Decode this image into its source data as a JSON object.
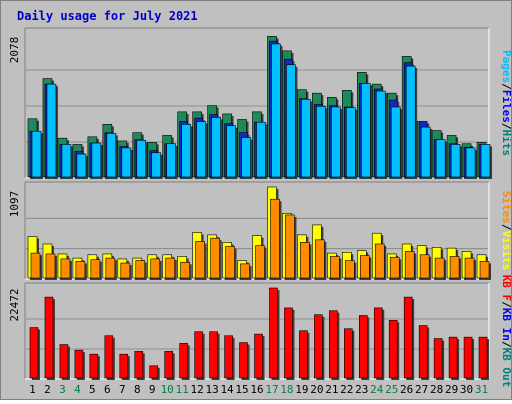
{
  "chart_data": {
    "type": "bar",
    "title": "Daily usage for July 2021",
    "categories": [
      "1",
      "2",
      "3",
      "4",
      "5",
      "6",
      "7",
      "8",
      "9",
      "10",
      "11",
      "12",
      "13",
      "14",
      "15",
      "16",
      "17",
      "18",
      "19",
      "20",
      "21",
      "22",
      "23",
      "24",
      "25",
      "26",
      "27",
      "28",
      "29",
      "30",
      "31"
    ],
    "weekend_categories": [
      "3",
      "4",
      "10",
      "11",
      "17",
      "18",
      "24",
      "25",
      "31"
    ],
    "panels": [
      {
        "id": "top",
        "ymax_label": "2078",
        "ymax": 2078,
        "legend": [
          {
            "text": "Pages",
            "color": "#00c0ff"
          },
          {
            "text": "/",
            "color": "#000000"
          },
          {
            "text": "Files",
            "color": "#0000ff"
          },
          {
            "text": "/",
            "color": "#000000"
          },
          {
            "text": "Hits",
            "color": "#008080"
          }
        ],
        "series": [
          {
            "name": "Hits",
            "color": "#1e8a5a",
            "values": [
              840,
              1420,
              560,
              470,
              580,
              760,
              520,
              640,
              500,
              600,
              940,
              940,
              1030,
              910,
              830,
              940,
              2030,
              1820,
              1260,
              1210,
              1150,
              1250,
              1510,
              1340,
              1210,
              1740,
              800,
              670,
              600,
              480,
              500
            ]
          },
          {
            "name": "Files",
            "color": "#1428c8",
            "values": [
              660,
              1340,
              470,
              370,
              490,
              640,
              440,
              540,
              380,
              480,
              800,
              850,
              900,
              770,
              640,
              790,
              1960,
              1700,
              1130,
              1050,
              1030,
              1010,
              1350,
              1270,
              1110,
              1650,
              800,
              540,
              480,
              430,
              470
            ]
          },
          {
            "name": "Pages",
            "color": "#00c0ff",
            "values": [
              660,
              1340,
              470,
              330,
              490,
              630,
              420,
              530,
              350,
              480,
              760,
              800,
              860,
              740,
              570,
              790,
              1920,
              1620,
              1120,
              1020,
              1010,
              1000,
              1350,
              1240,
              1010,
              1600,
              720,
              540,
              470,
              420,
              470
            ]
          }
        ]
      },
      {
        "id": "middle",
        "ymax_label": "1097",
        "ymax": 1097,
        "legend": [
          {
            "text": "Sites",
            "color": "#ff8c00"
          },
          {
            "text": "/",
            "color": "#000000"
          },
          {
            "text": "Visits",
            "color": "#ffff00"
          }
        ],
        "series": [
          {
            "name": "Visits",
            "color": "#ffff00",
            "values": [
              500,
              410,
              290,
              240,
              280,
              290,
              230,
              240,
              280,
              280,
              260,
              550,
              520,
              430,
              210,
              510,
              1097,
              780,
              520,
              640,
              300,
              310,
              330,
              540,
              290,
              410,
              390,
              370,
              360,
              320,
              280
            ]
          },
          {
            "name": "Sites",
            "color": "#ff8c00",
            "values": [
              300,
              290,
              230,
              200,
              220,
              240,
              180,
              210,
              230,
              240,
              190,
              440,
              480,
              380,
              170,
              390,
              950,
              760,
              430,
              460,
              260,
              210,
              270,
              410,
              250,
              320,
              280,
              240,
              260,
              240,
              200
            ]
          }
        ]
      },
      {
        "id": "bottom",
        "ymax_label": "22472",
        "ymax": 22472,
        "legend": [
          {
            "text": "KB F",
            "color": "#ff0000"
          },
          {
            "text": "/",
            "color": "#000000"
          },
          {
            "text": "KB In",
            "color": "#0000ff"
          },
          {
            "text": "/",
            "color": "#000000"
          },
          {
            "text": "KB Out",
            "color": "#008080"
          }
        ],
        "series": [
          {
            "name": "KB F",
            "color": "#ff0000",
            "values": [
              12600,
              20200,
              8350,
              6950,
              5950,
              10550,
              5950,
              6650,
              3050,
              6650,
              8650,
              11550,
              11550,
              10550,
              8850,
              10950,
              22472,
              17500,
              11800,
              15800,
              16800,
              12300,
              15600,
              17500,
              14400,
              20200,
              13100,
              9850,
              10200,
              10200,
              10200
            ]
          }
        ]
      }
    ]
  }
}
